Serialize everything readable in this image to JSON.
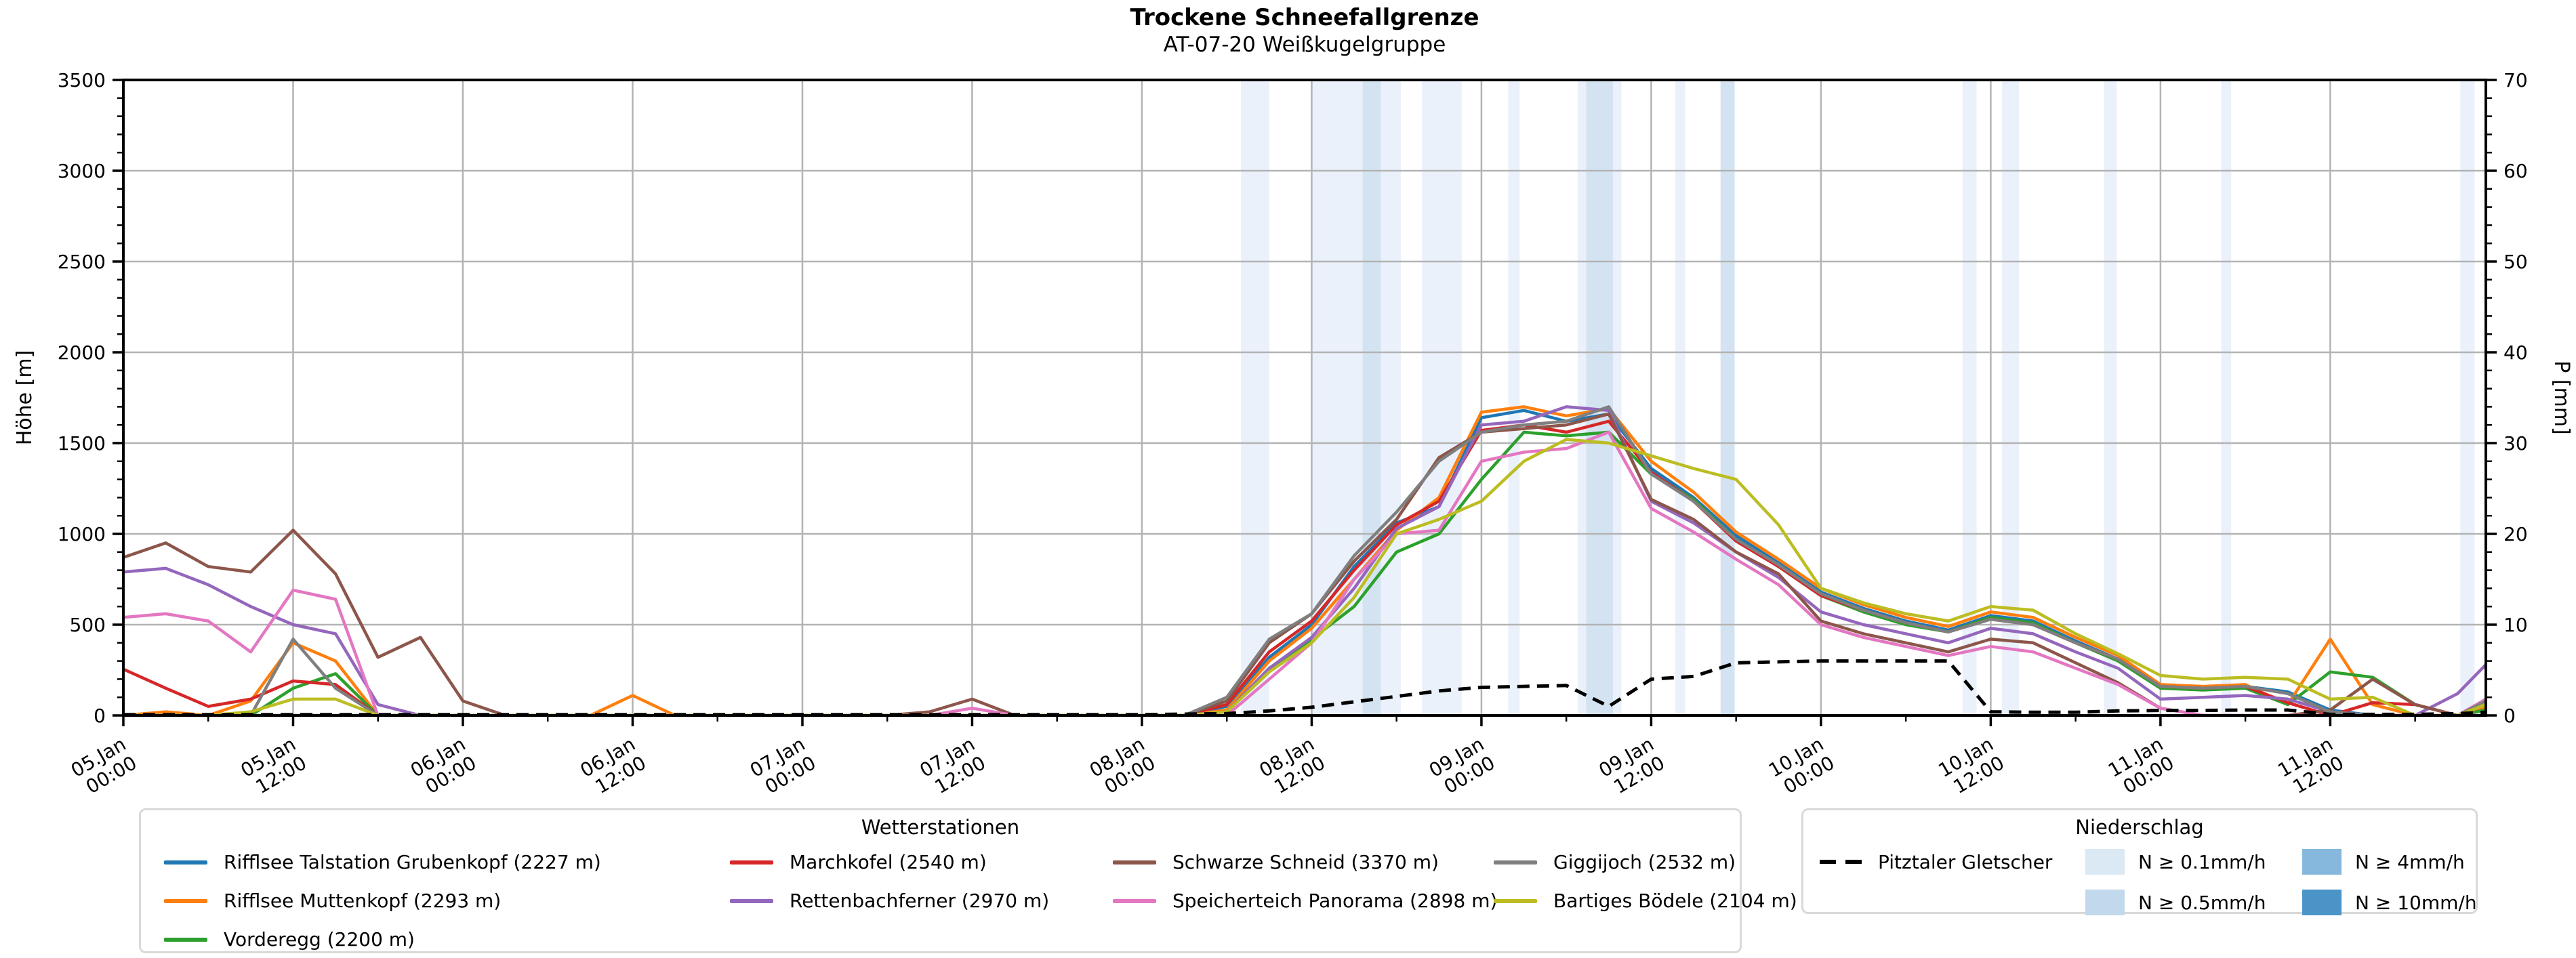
{
  "title": "Trockene Schneefallgrenze",
  "subtitle": "AT-07-20 Weißkugelgruppe",
  "chart_data": {
    "type": "line",
    "x_unit": "hours since 05.Jan 00:00",
    "x_domain_hours": [
      0,
      167
    ],
    "x_sample_step_hours": 3,
    "x_major_tick_every_h": 12,
    "x_minor_tick_every_h": 6,
    "x_tick_labels": [
      [
        "05.Jan",
        "00:00"
      ],
      [
        "05.Jan",
        "12:00"
      ],
      [
        "06.Jan",
        "00:00"
      ],
      [
        "06.Jan",
        "12:00"
      ],
      [
        "07.Jan",
        "00:00"
      ],
      [
        "07.Jan",
        "12:00"
      ],
      [
        "08.Jan",
        "00:00"
      ],
      [
        "08.Jan",
        "12:00"
      ],
      [
        "09.Jan",
        "00:00"
      ],
      [
        "09.Jan",
        "12:00"
      ],
      [
        "10.Jan",
        "00:00"
      ],
      [
        "10.Jan",
        "12:00"
      ],
      [
        "11.Jan",
        "00:00"
      ],
      [
        "11.Jan",
        "12:00"
      ]
    ],
    "y_left": {
      "label": "Höhe [m]",
      "min": 0,
      "max": 3500,
      "tick_step": 500,
      "minor_step": 100
    },
    "y_right": {
      "label": "P [mm]",
      "min": 0,
      "max": 70,
      "tick_step": 10,
      "minor_step": 2
    },
    "grid": true,
    "grid_color": "#b3b3b3",
    "series": [
      {
        "name": "Rifflsee Talstation Grubenkopf (2227 m)",
        "color": "#1f77b4",
        "values": [
          0,
          0,
          0,
          0,
          0,
          0,
          0,
          0,
          0,
          0,
          0,
          0,
          0,
          0,
          0,
          0,
          0,
          0,
          0,
          0,
          0,
          0,
          0,
          0,
          0,
          0,
          50,
          320,
          500,
          820,
          1060,
          1150,
          1640,
          1680,
          1620,
          1660,
          1360,
          1200,
          990,
          840,
          680,
          590,
          520,
          470,
          550,
          520,
          410,
          310,
          160,
          150,
          160,
          130,
          30,
          0,
          0,
          0,
          40
        ]
      },
      {
        "name": "Rifflsee Muttenkopf (2293 m)",
        "color": "#ff7f0e",
        "values": [
          0,
          20,
          0,
          80,
          400,
          300,
          0,
          0,
          0,
          0,
          0,
          0,
          110,
          0,
          0,
          0,
          0,
          0,
          0,
          0,
          0,
          0,
          0,
          0,
          0,
          0,
          30,
          300,
          480,
          750,
          1020,
          1200,
          1670,
          1700,
          1650,
          1690,
          1400,
          1230,
          1010,
          860,
          700,
          610,
          540,
          490,
          570,
          540,
          430,
          330,
          170,
          160,
          170,
          60,
          420,
          60,
          0,
          0,
          50
        ]
      },
      {
        "name": "Vorderegg (2200 m)",
        "color": "#2ca02c",
        "values": [
          0,
          0,
          0,
          0,
          150,
          230,
          0,
          0,
          0,
          0,
          0,
          0,
          0,
          0,
          0,
          0,
          0,
          0,
          0,
          0,
          0,
          0,
          0,
          0,
          0,
          0,
          20,
          250,
          420,
          600,
          900,
          1000,
          1300,
          1560,
          1540,
          1560,
          1330,
          1190,
          970,
          820,
          660,
          570,
          500,
          460,
          540,
          510,
          400,
          300,
          150,
          140,
          150,
          60,
          240,
          210,
          60,
          0,
          30
        ]
      },
      {
        "name": "Marchkofel (2540 m)",
        "color": "#d62728",
        "values": [
          255,
          150,
          50,
          90,
          190,
          170,
          0,
          0,
          0,
          0,
          0,
          0,
          0,
          0,
          0,
          0,
          0,
          0,
          0,
          0,
          0,
          0,
          0,
          0,
          0,
          0,
          60,
          350,
          520,
          800,
          1050,
          1180,
          1570,
          1600,
          1560,
          1620,
          1340,
          1180,
          960,
          820,
          660,
          580,
          510,
          460,
          530,
          500,
          400,
          310,
          160,
          150,
          160,
          70,
          0,
          70,
          60,
          0,
          60
        ]
      },
      {
        "name": "Rettenbachferner (2970 m)",
        "color": "#9467bd",
        "values": [
          790,
          810,
          720,
          600,
          500,
          450,
          60,
          0,
          0,
          0,
          0,
          0,
          0,
          0,
          0,
          0,
          0,
          0,
          0,
          0,
          0,
          0,
          0,
          0,
          0,
          0,
          20,
          260,
          430,
          700,
          1030,
          1150,
          1600,
          1620,
          1700,
          1680,
          1180,
          1060,
          900,
          760,
          570,
          500,
          450,
          400,
          480,
          450,
          350,
          260,
          90,
          100,
          110,
          90,
          20,
          0,
          0,
          120,
          280
        ]
      },
      {
        "name": "Schwarze Schneid (3370 m)",
        "color": "#8c564b",
        "values": [
          870,
          950,
          820,
          790,
          1020,
          780,
          320,
          430,
          80,
          0,
          0,
          0,
          0,
          0,
          0,
          0,
          0,
          0,
          0,
          20,
          90,
          0,
          0,
          0,
          0,
          0,
          80,
          400,
          560,
          850,
          1080,
          1420,
          1560,
          1580,
          1600,
          1660,
          1190,
          1080,
          900,
          780,
          520,
          450,
          400,
          350,
          420,
          400,
          290,
          180,
          40,
          0,
          0,
          0,
          30,
          200,
          60,
          0,
          0
        ]
      },
      {
        "name": "Speicherteich Panorama (2898 m)",
        "color": "#e377c2",
        "values": [
          540,
          560,
          520,
          350,
          690,
          640,
          0,
          0,
          0,
          0,
          0,
          0,
          0,
          0,
          0,
          0,
          0,
          0,
          0,
          0,
          40,
          0,
          0,
          0,
          0,
          0,
          0,
          200,
          400,
          750,
          1000,
          1020,
          1400,
          1450,
          1470,
          1560,
          1140,
          1010,
          860,
          720,
          500,
          430,
          380,
          330,
          380,
          350,
          260,
          170,
          40,
          0,
          0,
          0,
          0,
          0,
          0,
          0,
          90
        ]
      },
      {
        "name": "Giggijoch (2532 m)",
        "color": "#7f7f7f",
        "values": [
          0,
          0,
          0,
          0,
          420,
          150,
          0,
          0,
          0,
          0,
          0,
          0,
          0,
          0,
          0,
          0,
          0,
          0,
          0,
          0,
          0,
          0,
          0,
          0,
          0,
          0,
          100,
          420,
          560,
          880,
          1120,
          1400,
          1560,
          1600,
          1620,
          1700,
          1330,
          1180,
          970,
          830,
          670,
          580,
          510,
          460,
          530,
          500,
          400,
          310,
          160,
          150,
          160,
          120,
          20,
          0,
          0,
          0,
          80
        ]
      },
      {
        "name": "Bartiges Bödele (2104 m)",
        "color": "#bcbd22",
        "values": [
          0,
          0,
          0,
          20,
          90,
          90,
          0,
          0,
          0,
          0,
          0,
          0,
          0,
          0,
          0,
          0,
          0,
          0,
          0,
          0,
          0,
          0,
          0,
          0,
          0,
          0,
          20,
          240,
          400,
          650,
          1000,
          1080,
          1180,
          1400,
          1520,
          1500,
          1430,
          1360,
          1300,
          1050,
          700,
          620,
          560,
          520,
          600,
          580,
          450,
          340,
          220,
          200,
          210,
          200,
          90,
          100,
          0,
          0,
          60
        ]
      }
    ],
    "precip_line": {
      "name": "Pitztaler Gletscher",
      "color": "#000000",
      "dashed": true,
      "axis": "right",
      "values": [
        0.1,
        0.1,
        0.1,
        0.1,
        0.1,
        0.1,
        0.1,
        0.1,
        0.1,
        0.1,
        0.1,
        0.1,
        0.1,
        0.1,
        0.1,
        0.1,
        0.1,
        0.1,
        0.1,
        0.1,
        0.1,
        0.1,
        0.1,
        0.1,
        0.1,
        0.15,
        0.2,
        0.5,
        0.9,
        1.5,
        2.1,
        2.7,
        3.1,
        3.2,
        3.3,
        1.0,
        4.0,
        4.3,
        5.8,
        5.9,
        6.0,
        6.0,
        6.0,
        6.0,
        0.4,
        0.35,
        0.35,
        0.5,
        0.55,
        0.55,
        0.6,
        0.6,
        0.12,
        0.12,
        0.12,
        0.2,
        0.35
      ]
    },
    "precip_bands": [
      {
        "start_h": 79.0,
        "end_h": 81.0,
        "level": 1
      },
      {
        "start_h": 84.0,
        "end_h": 87.6,
        "level": 1
      },
      {
        "start_h": 87.6,
        "end_h": 88.9,
        "level": 2
      },
      {
        "start_h": 88.9,
        "end_h": 90.3,
        "level": 1
      },
      {
        "start_h": 91.8,
        "end_h": 94.6,
        "level": 1
      },
      {
        "start_h": 97.9,
        "end_h": 98.7,
        "level": 1
      },
      {
        "start_h": 102.8,
        "end_h": 103.4,
        "level": 1
      },
      {
        "start_h": 103.4,
        "end_h": 105.3,
        "level": 2
      },
      {
        "start_h": 105.3,
        "end_h": 105.9,
        "level": 1
      },
      {
        "start_h": 109.7,
        "end_h": 110.4,
        "level": 1
      },
      {
        "start_h": 112.9,
        "end_h": 113.9,
        "level": 2
      },
      {
        "start_h": 130.0,
        "end_h": 131.0,
        "level": 1
      },
      {
        "start_h": 132.8,
        "end_h": 134.0,
        "level": 1
      },
      {
        "start_h": 140.0,
        "end_h": 140.9,
        "level": 1
      },
      {
        "start_h": 148.3,
        "end_h": 149.0,
        "level": 1
      },
      {
        "start_h": 165.2,
        "end_h": 166.2,
        "level": 1
      }
    ],
    "band_colors": {
      "1": "#eaf1fa",
      "2": "#d4e3f2",
      "3": "#85b8dc",
      "4": "#4a94c8"
    }
  },
  "legend_stations": {
    "title": "Wetterstationen",
    "columns": [
      [
        0,
        1,
        2
      ],
      [
        3,
        4
      ],
      [
        5,
        6
      ],
      [
        7,
        8
      ]
    ]
  },
  "legend_precip": {
    "title": "Niederschlag",
    "line_label": "Pitztaler Gletscher",
    "patches": [
      {
        "label": "N ≥ 0.1mm/h",
        "color": "#dbe9f5"
      },
      {
        "label": "N ≥ 0.5mm/h",
        "color": "#c2d8ec"
      },
      {
        "label": "N ≥ 4mm/h",
        "color": "#85b8dc"
      },
      {
        "label": "N ≥ 10mm/h",
        "color": "#4a94c8"
      }
    ],
    "patch_layout": [
      [
        0,
        2
      ],
      [
        1,
        3
      ]
    ]
  }
}
